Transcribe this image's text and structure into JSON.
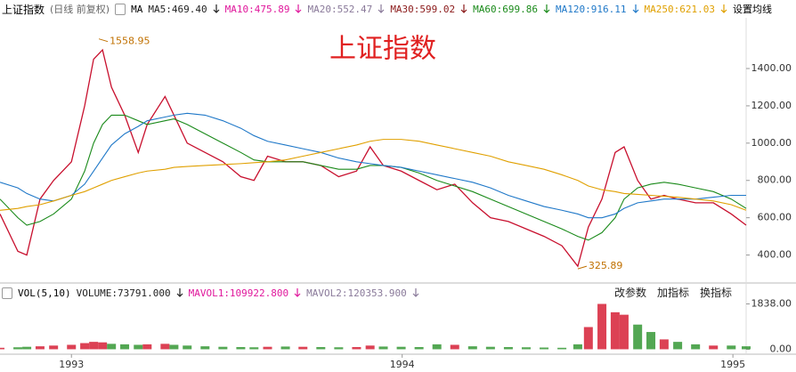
{
  "chart_data": {
    "type": "line",
    "title": "上证指数",
    "index_name": "上证指数",
    "adjust_note": "(日线 前复权)",
    "ma_prefix": "MA",
    "settings_label": "设置均线",
    "ma_legend": [
      {
        "label": "MA5:469.40",
        "color": "#222222"
      },
      {
        "label": "MA10:475.89",
        "color": "#e0189c"
      },
      {
        "label": "MA20:552.47",
        "color": "#8a7a9a"
      },
      {
        "label": "MA30:599.02",
        "color": "#8b1a1a"
      },
      {
        "label": "MA60:699.86",
        "color": "#1a8a1a"
      },
      {
        "label": "MA120:916.11",
        "color": "#1f78c8"
      },
      {
        "label": "MA250:621.03",
        "color": "#e0a000"
      }
    ],
    "x": [
      1992.784,
      1992.838,
      1992.865,
      1992.905,
      1992.946,
      1993.0,
      1993.04,
      1993.067,
      1993.094,
      1993.121,
      1993.161,
      1993.202,
      1993.229,
      1993.283,
      1993.31,
      1993.35,
      1993.404,
      1993.458,
      1993.512,
      1993.552,
      1993.593,
      1993.647,
      1993.7,
      1993.754,
      1993.808,
      1993.862,
      1993.903,
      1993.943,
      1993.997,
      1994.051,
      1994.105,
      1994.159,
      1994.213,
      1994.267,
      1994.321,
      1994.375,
      1994.429,
      1994.483,
      1994.531,
      1994.563,
      1994.604,
      1994.644,
      1994.671,
      1994.712,
      1994.752,
      1994.792,
      1994.833,
      1994.887,
      1994.941,
      1994.995,
      1995.04
    ],
    "series": [
      {
        "name": "close",
        "color": "#c8102e",
        "values": [
          620,
          420,
          400,
          700,
          800,
          900,
          1200,
          1450,
          1500,
          1300,
          1150,
          950,
          1100,
          1250,
          1150,
          1000,
          950,
          900,
          820,
          800,
          930,
          900,
          900,
          880,
          820,
          850,
          980,
          880,
          850,
          800,
          750,
          780,
          680,
          600,
          580,
          540,
          500,
          450,
          340,
          550,
          700,
          950,
          980,
          800,
          700,
          720,
          700,
          680,
          680,
          620,
          560
        ]
      },
      {
        "name": "MA60",
        "color": "#1a8a1a",
        "values": [
          700,
          600,
          560,
          580,
          620,
          700,
          850,
          1000,
          1100,
          1150,
          1150,
          1120,
          1100,
          1120,
          1130,
          1100,
          1050,
          1000,
          950,
          910,
          900,
          900,
          900,
          880,
          860,
          860,
          880,
          880,
          870,
          840,
          800,
          770,
          740,
          700,
          660,
          620,
          580,
          540,
          500,
          480,
          520,
          600,
          700,
          760,
          780,
          790,
          780,
          760,
          740,
          700,
          650
        ]
      },
      {
        "name": "MA120",
        "color": "#1f78c8",
        "values": [
          790,
          760,
          730,
          700,
          690,
          720,
          780,
          850,
          920,
          990,
          1050,
          1090,
          1120,
          1140,
          1150,
          1160,
          1150,
          1120,
          1080,
          1040,
          1010,
          990,
          970,
          950,
          920,
          900,
          890,
          880,
          870,
          850,
          830,
          810,
          790,
          760,
          720,
          690,
          660,
          640,
          620,
          600,
          600,
          620,
          650,
          680,
          690,
          700,
          700,
          700,
          710,
          720,
          720
        ]
      },
      {
        "name": "MA250",
        "color": "#e0a000",
        "values": [
          640,
          650,
          660,
          670,
          690,
          720,
          740,
          760,
          780,
          800,
          820,
          840,
          850,
          860,
          870,
          875,
          880,
          885,
          890,
          895,
          900,
          910,
          930,
          950,
          970,
          990,
          1010,
          1020,
          1020,
          1010,
          990,
          970,
          950,
          930,
          900,
          880,
          860,
          830,
          800,
          770,
          750,
          740,
          730,
          725,
          720,
          715,
          710,
          700,
          690,
          670,
          640
        ]
      }
    ],
    "xlim": [
      1992.784,
      1995.04
    ],
    "xticks": [
      1993,
      1994,
      1995
    ],
    "ylim": [
      250,
      1672
    ],
    "yticks": [
      {
        "value": 400,
        "label": "400.00"
      },
      {
        "value": 600,
        "label": "600.00"
      },
      {
        "value": 800,
        "label": "800.00"
      },
      {
        "value": 1000,
        "label": "1000.00"
      },
      {
        "value": 1200,
        "label": "1200.00"
      },
      {
        "value": 1400,
        "label": "1400.00"
      }
    ],
    "annotations": [
      {
        "x": 1993.083,
        "value": 1558.95
      },
      {
        "x": 1994.531,
        "value": 325.89
      }
    ],
    "grid": false,
    "volume": {
      "header": "VOL(5,10)",
      "legend": [
        {
          "label": "VOLUME:73791.000",
          "color": "#222222"
        },
        {
          "label": "MAVOL1:109922.800",
          "color": "#e0189c"
        },
        {
          "label": "MAVOL2:120353.900",
          "color": "#8a7a9a"
        }
      ],
      "buttons": [
        "改参数",
        "加指标",
        "换指标"
      ],
      "values": [
        60,
        80,
        100,
        120,
        150,
        180,
        250,
        300,
        280,
        220,
        200,
        180,
        200,
        220,
        180,
        150,
        120,
        100,
        90,
        80,
        100,
        110,
        100,
        90,
        80,
        90,
        150,
        110,
        100,
        90,
        200,
        180,
        120,
        100,
        90,
        80,
        70,
        60,
        200,
        900,
        1838,
        1500,
        1400,
        1000,
        700,
        400,
        300,
        200,
        150,
        150,
        120
      ],
      "ylim": [
        -200,
        2000
      ],
      "yticks": [
        {
          "value": 0,
          "label": "0.00"
        },
        {
          "value": 1838,
          "label": "1838.00"
        }
      ],
      "up_color": "#d0021b",
      "down_color": "#1a8a1a"
    }
  }
}
